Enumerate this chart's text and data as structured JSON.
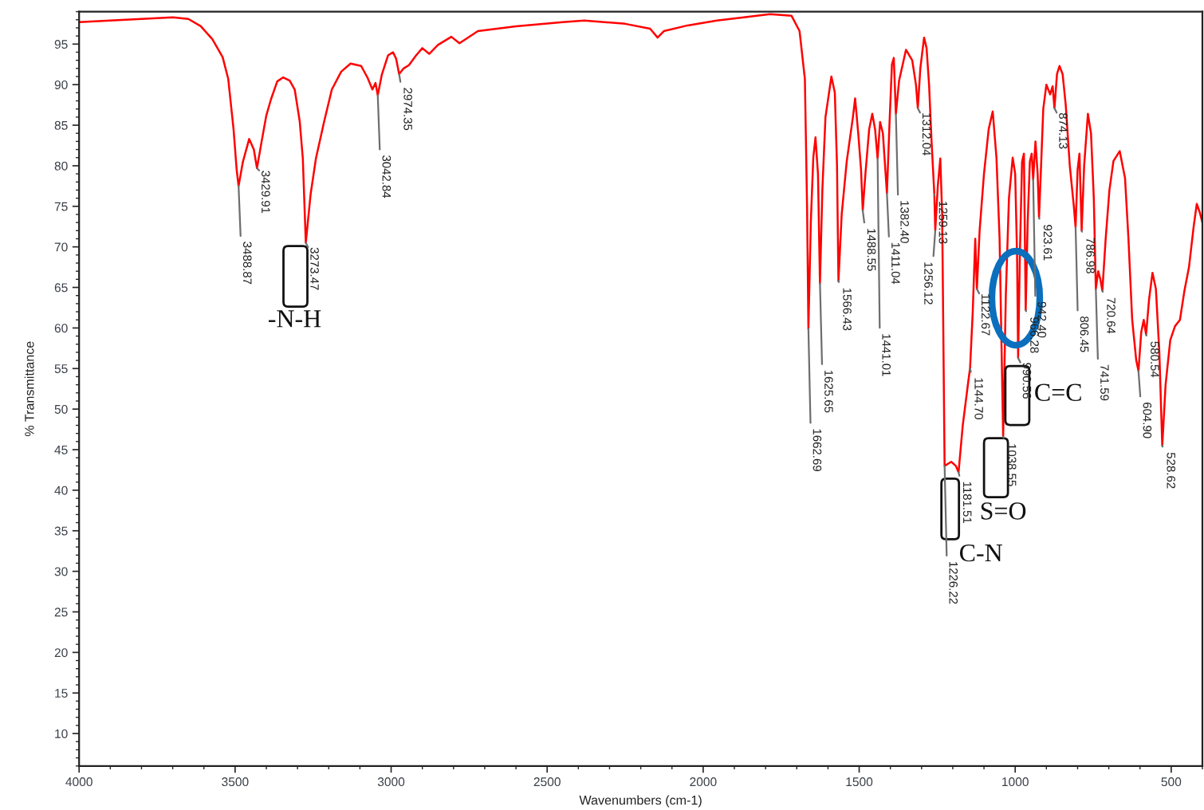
{
  "chart_data": {
    "type": "line",
    "xlabel": "Wavenumbers (cm-1)",
    "ylabel": "% Transmittance",
    "x": [
      4000,
      3900,
      3800,
      3700,
      3650,
      3610,
      3573,
      3540,
      3522,
      3505,
      3495,
      3488.87,
      3475,
      3455,
      3440,
      3429.91,
      3415,
      3400,
      3385,
      3365,
      3346,
      3325,
      3309,
      3293,
      3283,
      3273.47,
      3258,
      3241,
      3215,
      3190,
      3160,
      3130,
      3096,
      3075,
      3060,
      3050,
      3042.84,
      3030,
      3010,
      2994,
      2984,
      2974.35,
      2960,
      2943,
      2920,
      2900,
      2878,
      2850,
      2807,
      2781,
      2722,
      2600,
      2450,
      2381,
      2250,
      2170,
      2146,
      2126,
      2050,
      1956,
      1870,
      1786,
      1717,
      1691,
      1674,
      1667,
      1662.69,
      1655,
      1647,
      1640,
      1632,
      1625.65,
      1618,
      1608,
      1589,
      1578,
      1571,
      1566.43,
      1556,
      1540,
      1520,
      1513,
      1503,
      1494,
      1488.55,
      1480,
      1468,
      1458,
      1449,
      1441.01,
      1433,
      1424,
      1411.04,
      1403,
      1395,
      1389,
      1382.4,
      1372,
      1350,
      1330,
      1318,
      1312.04,
      1304,
      1292,
      1284,
      1276,
      1268,
      1259.13,
      1256.12,
      1248,
      1240,
      1234,
      1226.22,
      1205,
      1190,
      1181.51,
      1168,
      1150,
      1144.7,
      1136,
      1128,
      1122.67,
      1114,
      1100,
      1085,
      1072,
      1060,
      1050,
      1038.55,
      1030,
      1020,
      1008,
      1000,
      994,
      990.56,
      985,
      978,
      972,
      966.28,
      960,
      953,
      947,
      942.4,
      935,
      928,
      923.61,
      917,
      910,
      900,
      888,
      880,
      874.13,
      866,
      858,
      848,
      838,
      825,
      812,
      806.45,
      800,
      794,
      786.98,
      779,
      767,
      757,
      748,
      741.59,
      734,
      727,
      720.64,
      710,
      698,
      685,
      665,
      648,
      637,
      625,
      612,
      604.9,
      596,
      588,
      580.54,
      571,
      560,
      549,
      538,
      528.62,
      518,
      503,
      488,
      472,
      458,
      443,
      428,
      418,
      408,
      400
    ],
    "series": [
      {
        "color": "#ff0000",
        "values": [
          97.7,
          97.9,
          98.1,
          98.3,
          98.1,
          97.2,
          95.6,
          93.4,
          90.7,
          84.5,
          79.5,
          77.5,
          80.5,
          83.3,
          82,
          79.7,
          83,
          86.2,
          88.2,
          90.4,
          90.9,
          90.5,
          89.4,
          85.5,
          80.9,
          70.5,
          76.5,
          80.9,
          85.4,
          89.4,
          91.6,
          92.6,
          92.3,
          90.8,
          89.4,
          90.2,
          88.7,
          91.2,
          93.6,
          94.0,
          93.2,
          91.3,
          92.0,
          92.4,
          93.6,
          94.5,
          93.8,
          94.9,
          95.9,
          95.1,
          96.6,
          97.2,
          97.7,
          97.9,
          97.5,
          96.9,
          95.8,
          96.6,
          97.3,
          97.9,
          98.3,
          98.7,
          98.5,
          96.6,
          90.7,
          75,
          59.9,
          73,
          81,
          83.5,
          79,
          65.5,
          77,
          86,
          91.0,
          89,
          80,
          65.8,
          74,
          80.5,
          86,
          88.3,
          84,
          79.5,
          74.5,
          79,
          84.5,
          86.4,
          84.5,
          80.9,
          85.4,
          84,
          76.6,
          85,
          92.5,
          93.3,
          86.4,
          90.5,
          94.3,
          93,
          90,
          87.1,
          92,
          95.8,
          94.5,
          90,
          83,
          76.5,
          72.0,
          77.5,
          80.9,
          74,
          43,
          43.5,
          43,
          42.2,
          48,
          53.5,
          55.0,
          62,
          71,
          64.8,
          72,
          79,
          84.5,
          86.7,
          81,
          71,
          46.6,
          64,
          76,
          81,
          79,
          69,
          56.3,
          69,
          80.5,
          81.5,
          62.2,
          73,
          80.5,
          81.5,
          78.3,
          83,
          79,
          73.6,
          80,
          87,
          90,
          88.8,
          89.8,
          87.1,
          91.3,
          92.3,
          91.3,
          87.5,
          80,
          75,
          72.4,
          79.5,
          81.5,
          72.0,
          80,
          86.4,
          84,
          76,
          64.8,
          67,
          66,
          64.6,
          71,
          77,
          80.6,
          81.8,
          78.5,
          71,
          61,
          56,
          54.7,
          59.5,
          61,
          59.2,
          63.5,
          66.8,
          64.8,
          57,
          45.5,
          53,
          58.5,
          60.2,
          61,
          64.5,
          67.5,
          72.5,
          75.3,
          74.2,
          73.0
        ]
      }
    ],
    "xlim": [
      4000,
      400
    ],
    "ylim": [
      6,
      99
    ],
    "xticks": [
      4000,
      3500,
      3000,
      2500,
      2000,
      1500,
      1000,
      500
    ],
    "yticks": [
      10,
      15,
      20,
      25,
      30,
      35,
      40,
      45,
      50,
      55,
      60,
      65,
      70,
      75,
      80,
      85,
      90,
      95
    ],
    "annotations": [
      {
        "text": "3488.87",
        "x": 3488.87,
        "y": 77.5
      },
      {
        "text": "3429.91",
        "x": 3429.91,
        "y": 79.7
      },
      {
        "text": "3273.47",
        "x": 3273.47,
        "y": 70.5
      },
      {
        "text": "3042.84",
        "x": 3042.84,
        "y": 88.7
      },
      {
        "text": "2974.35",
        "x": 2974.35,
        "y": 91.3
      },
      {
        "text": "1662.69",
        "x": 1662.69,
        "y": 59.9
      },
      {
        "text": "1625.65",
        "x": 1625.65,
        "y": 65.5
      },
      {
        "text": "1566.43",
        "x": 1566.43,
        "y": 65.8
      },
      {
        "text": "1488.55",
        "x": 1488.55,
        "y": 74.5
      },
      {
        "text": "1441.01",
        "x": 1441.01,
        "y": 80.9
      },
      {
        "text": "1411.04",
        "x": 1411.04,
        "y": 76.6
      },
      {
        "text": "1382.40",
        "x": 1382.4,
        "y": 86.4
      },
      {
        "text": "1312.04",
        "x": 1312.04,
        "y": 87.1
      },
      {
        "text": "1259.13",
        "x": 1259.13,
        "y": 76.5
      },
      {
        "text": "1256.12",
        "x": 1256.12,
        "y": 72.0
      },
      {
        "text": "1226.22",
        "x": 1226.22,
        "y": 43
      },
      {
        "text": "1181.51",
        "x": 1181.51,
        "y": 42.2
      },
      {
        "text": "1144.70",
        "x": 1144.7,
        "y": 55.0
      },
      {
        "text": "1122.67",
        "x": 1122.67,
        "y": 64.8
      },
      {
        "text": "1038.55",
        "x": 1038.55,
        "y": 46.6
      },
      {
        "text": "990.56",
        "x": 990.56,
        "y": 56.3
      },
      {
        "text": "966.28",
        "x": 966.28,
        "y": 62.2
      },
      {
        "text": "942.40",
        "x": 942.4,
        "y": 78.3
      },
      {
        "text": "923.61",
        "x": 923.61,
        "y": 73.6
      },
      {
        "text": "874.13",
        "x": 874.13,
        "y": 87.1
      },
      {
        "text": "806.45",
        "x": 806.45,
        "y": 72.4
      },
      {
        "text": "786.98",
        "x": 786.98,
        "y": 72.0
      },
      {
        "text": "741.59",
        "x": 741.59,
        "y": 64.8
      },
      {
        "text": "720.64",
        "x": 720.64,
        "y": 64.6
      },
      {
        "text": "604.90",
        "x": 604.9,
        "y": 54.7
      },
      {
        "text": "580.54",
        "x": 580.54,
        "y": 59.2
      },
      {
        "text": "528.62",
        "x": 528.62,
        "y": 45.5
      },
      {
        "text": "-N-H",
        "x": 3273.47,
        "y": 70.5
      },
      {
        "text": "C-N",
        "x": 1226.22,
        "y": 43
      },
      {
        "text": "S=O",
        "x": 1038.55,
        "y": 46.6
      },
      {
        "text": "C=C",
        "x": 990.56,
        "y": 56.3
      }
    ]
  }
}
